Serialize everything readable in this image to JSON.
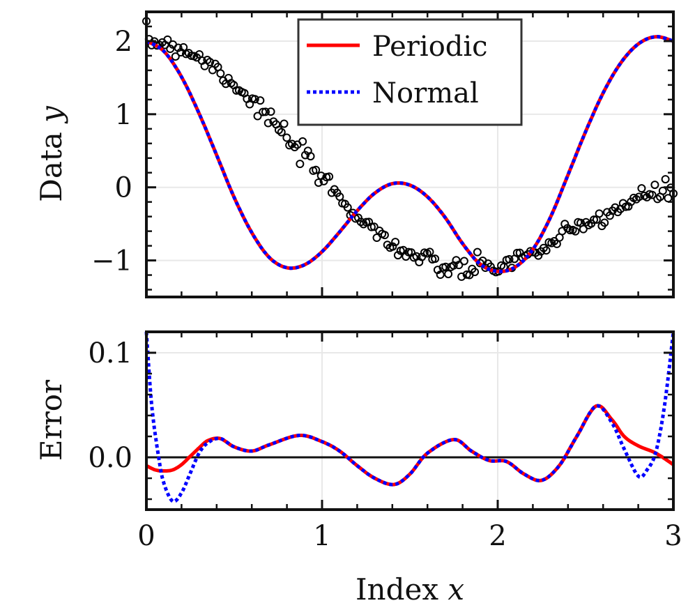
{
  "chart_data": [
    {
      "panel": "top",
      "type": "scatter+line",
      "ylabel": "Data y",
      "xlim": [
        0,
        3
      ],
      "ylim": [
        -1.5,
        2.4
      ],
      "xticks": [
        0,
        1,
        2,
        3
      ],
      "yticks": [
        -1,
        0,
        1,
        2
      ],
      "ytick_labels": [
        "−1",
        "0",
        "1",
        "2"
      ],
      "grid": true,
      "legend_position": "top-center",
      "series": [
        {
          "name": "Periodic",
          "style": "solid",
          "color": "#ff0000",
          "x": [
            0,
            0.1,
            0.2,
            0.3,
            0.4,
            0.5,
            0.6,
            0.7,
            0.8,
            0.9,
            1.0,
            1.1,
            1.2,
            1.3,
            1.4,
            1.5,
            1.6,
            1.7,
            1.8,
            1.9,
            2.0,
            2.1,
            2.2,
            2.3,
            2.4,
            2.5,
            2.6,
            2.7,
            2.8,
            2.9,
            3.0
          ],
          "y": [
            2.0,
            1.86,
            1.51,
            1.01,
            0.44,
            -0.14,
            -0.62,
            -0.96,
            -1.1,
            -1.06,
            -0.88,
            -0.61,
            -0.32,
            -0.08,
            0.05,
            0.03,
            -0.13,
            -0.41,
            -0.77,
            -1.05,
            -1.15,
            -1.09,
            -0.85,
            -0.41,
            0.17,
            0.76,
            1.29,
            1.7,
            1.96,
            2.06,
            2.0
          ]
        },
        {
          "name": "Normal",
          "style": "dotted",
          "color": "#0000ff",
          "x": [
            0,
            0.1,
            0.2,
            0.3,
            0.4,
            0.5,
            0.6,
            0.7,
            0.8,
            0.9,
            1.0,
            1.1,
            1.2,
            1.3,
            1.4,
            1.5,
            1.6,
            1.7,
            1.8,
            1.9,
            2.0,
            2.1,
            2.2,
            2.3,
            2.4,
            2.5,
            2.6,
            2.7,
            2.8,
            2.9,
            3.0
          ],
          "y": [
            2.0,
            1.86,
            1.51,
            1.01,
            0.44,
            -0.14,
            -0.62,
            -0.96,
            -1.1,
            -1.06,
            -0.88,
            -0.61,
            -0.32,
            -0.08,
            0.05,
            0.03,
            -0.13,
            -0.41,
            -0.77,
            -1.05,
            -1.15,
            -1.09,
            -0.85,
            -0.41,
            0.17,
            0.76,
            1.29,
            1.7,
            1.96,
            2.06,
            2.0
          ]
        }
      ],
      "scatter": {
        "marker": "open-circle",
        "color": "#000000",
        "amplitudes": {
          "cos_x": 1.0,
          "cos_2x": 1.0
        },
        "noise_sd": 0.07,
        "count": 200
      }
    },
    {
      "panel": "bottom",
      "type": "line",
      "xlabel": "Index x",
      "ylabel": "Error",
      "xlim": [
        0,
        3
      ],
      "ylim": [
        -0.05,
        0.12
      ],
      "xticks": [
        0,
        1,
        2,
        3
      ],
      "yticks": [
        0.0,
        0.1
      ],
      "ytick_labels": [
        "0.0",
        "0.1"
      ],
      "grid": true,
      "zero_line": true,
      "series": [
        {
          "name": "Periodic",
          "style": "solid",
          "color": "#ff0000",
          "x": [
            0,
            0.05,
            0.1,
            0.15,
            0.2,
            0.25,
            0.3,
            0.35,
            0.42,
            0.5,
            0.6,
            0.7,
            0.87,
            1.0,
            1.1,
            1.2,
            1.3,
            1.41,
            1.5,
            1.6,
            1.75,
            1.85,
            1.95,
            2.05,
            2.15,
            2.25,
            2.35,
            2.45,
            2.56,
            2.65,
            2.72,
            2.8,
            2.9,
            3.0
          ],
          "y": [
            -0.008,
            -0.012,
            -0.013,
            -0.012,
            -0.007,
            0.001,
            0.009,
            0.016,
            0.018,
            0.01,
            0.006,
            0.012,
            0.021,
            0.015,
            0.006,
            -0.008,
            -0.02,
            -0.026,
            -0.016,
            0.004,
            0.017,
            0.006,
            -0.003,
            -0.004,
            -0.016,
            -0.022,
            -0.008,
            0.02,
            0.049,
            0.036,
            0.02,
            0.011,
            0.004,
            -0.007
          ]
        },
        {
          "name": "Normal",
          "style": "dotted",
          "color": "#0000ff",
          "x": [
            0,
            0.03,
            0.07,
            0.1,
            0.15,
            0.2,
            0.25,
            0.3,
            0.35,
            0.42,
            0.5,
            0.6,
            0.7,
            0.87,
            1.0,
            1.1,
            1.2,
            1.3,
            1.41,
            1.5,
            1.6,
            1.75,
            1.85,
            1.95,
            2.05,
            2.15,
            2.25,
            2.35,
            2.45,
            2.56,
            2.65,
            2.72,
            2.8,
            2.85,
            2.9,
            2.95,
            3.0
          ],
          "y": [
            0.12,
            0.05,
            0.0,
            -0.025,
            -0.042,
            -0.034,
            -0.015,
            0.004,
            0.014,
            0.018,
            0.01,
            0.006,
            0.012,
            0.021,
            0.015,
            0.006,
            -0.008,
            -0.02,
            -0.026,
            -0.016,
            0.004,
            0.017,
            0.006,
            -0.003,
            -0.004,
            -0.016,
            -0.022,
            -0.008,
            0.02,
            0.049,
            0.033,
            0.008,
            -0.018,
            -0.012,
            0.005,
            0.05,
            0.12
          ]
        }
      ]
    }
  ]
}
